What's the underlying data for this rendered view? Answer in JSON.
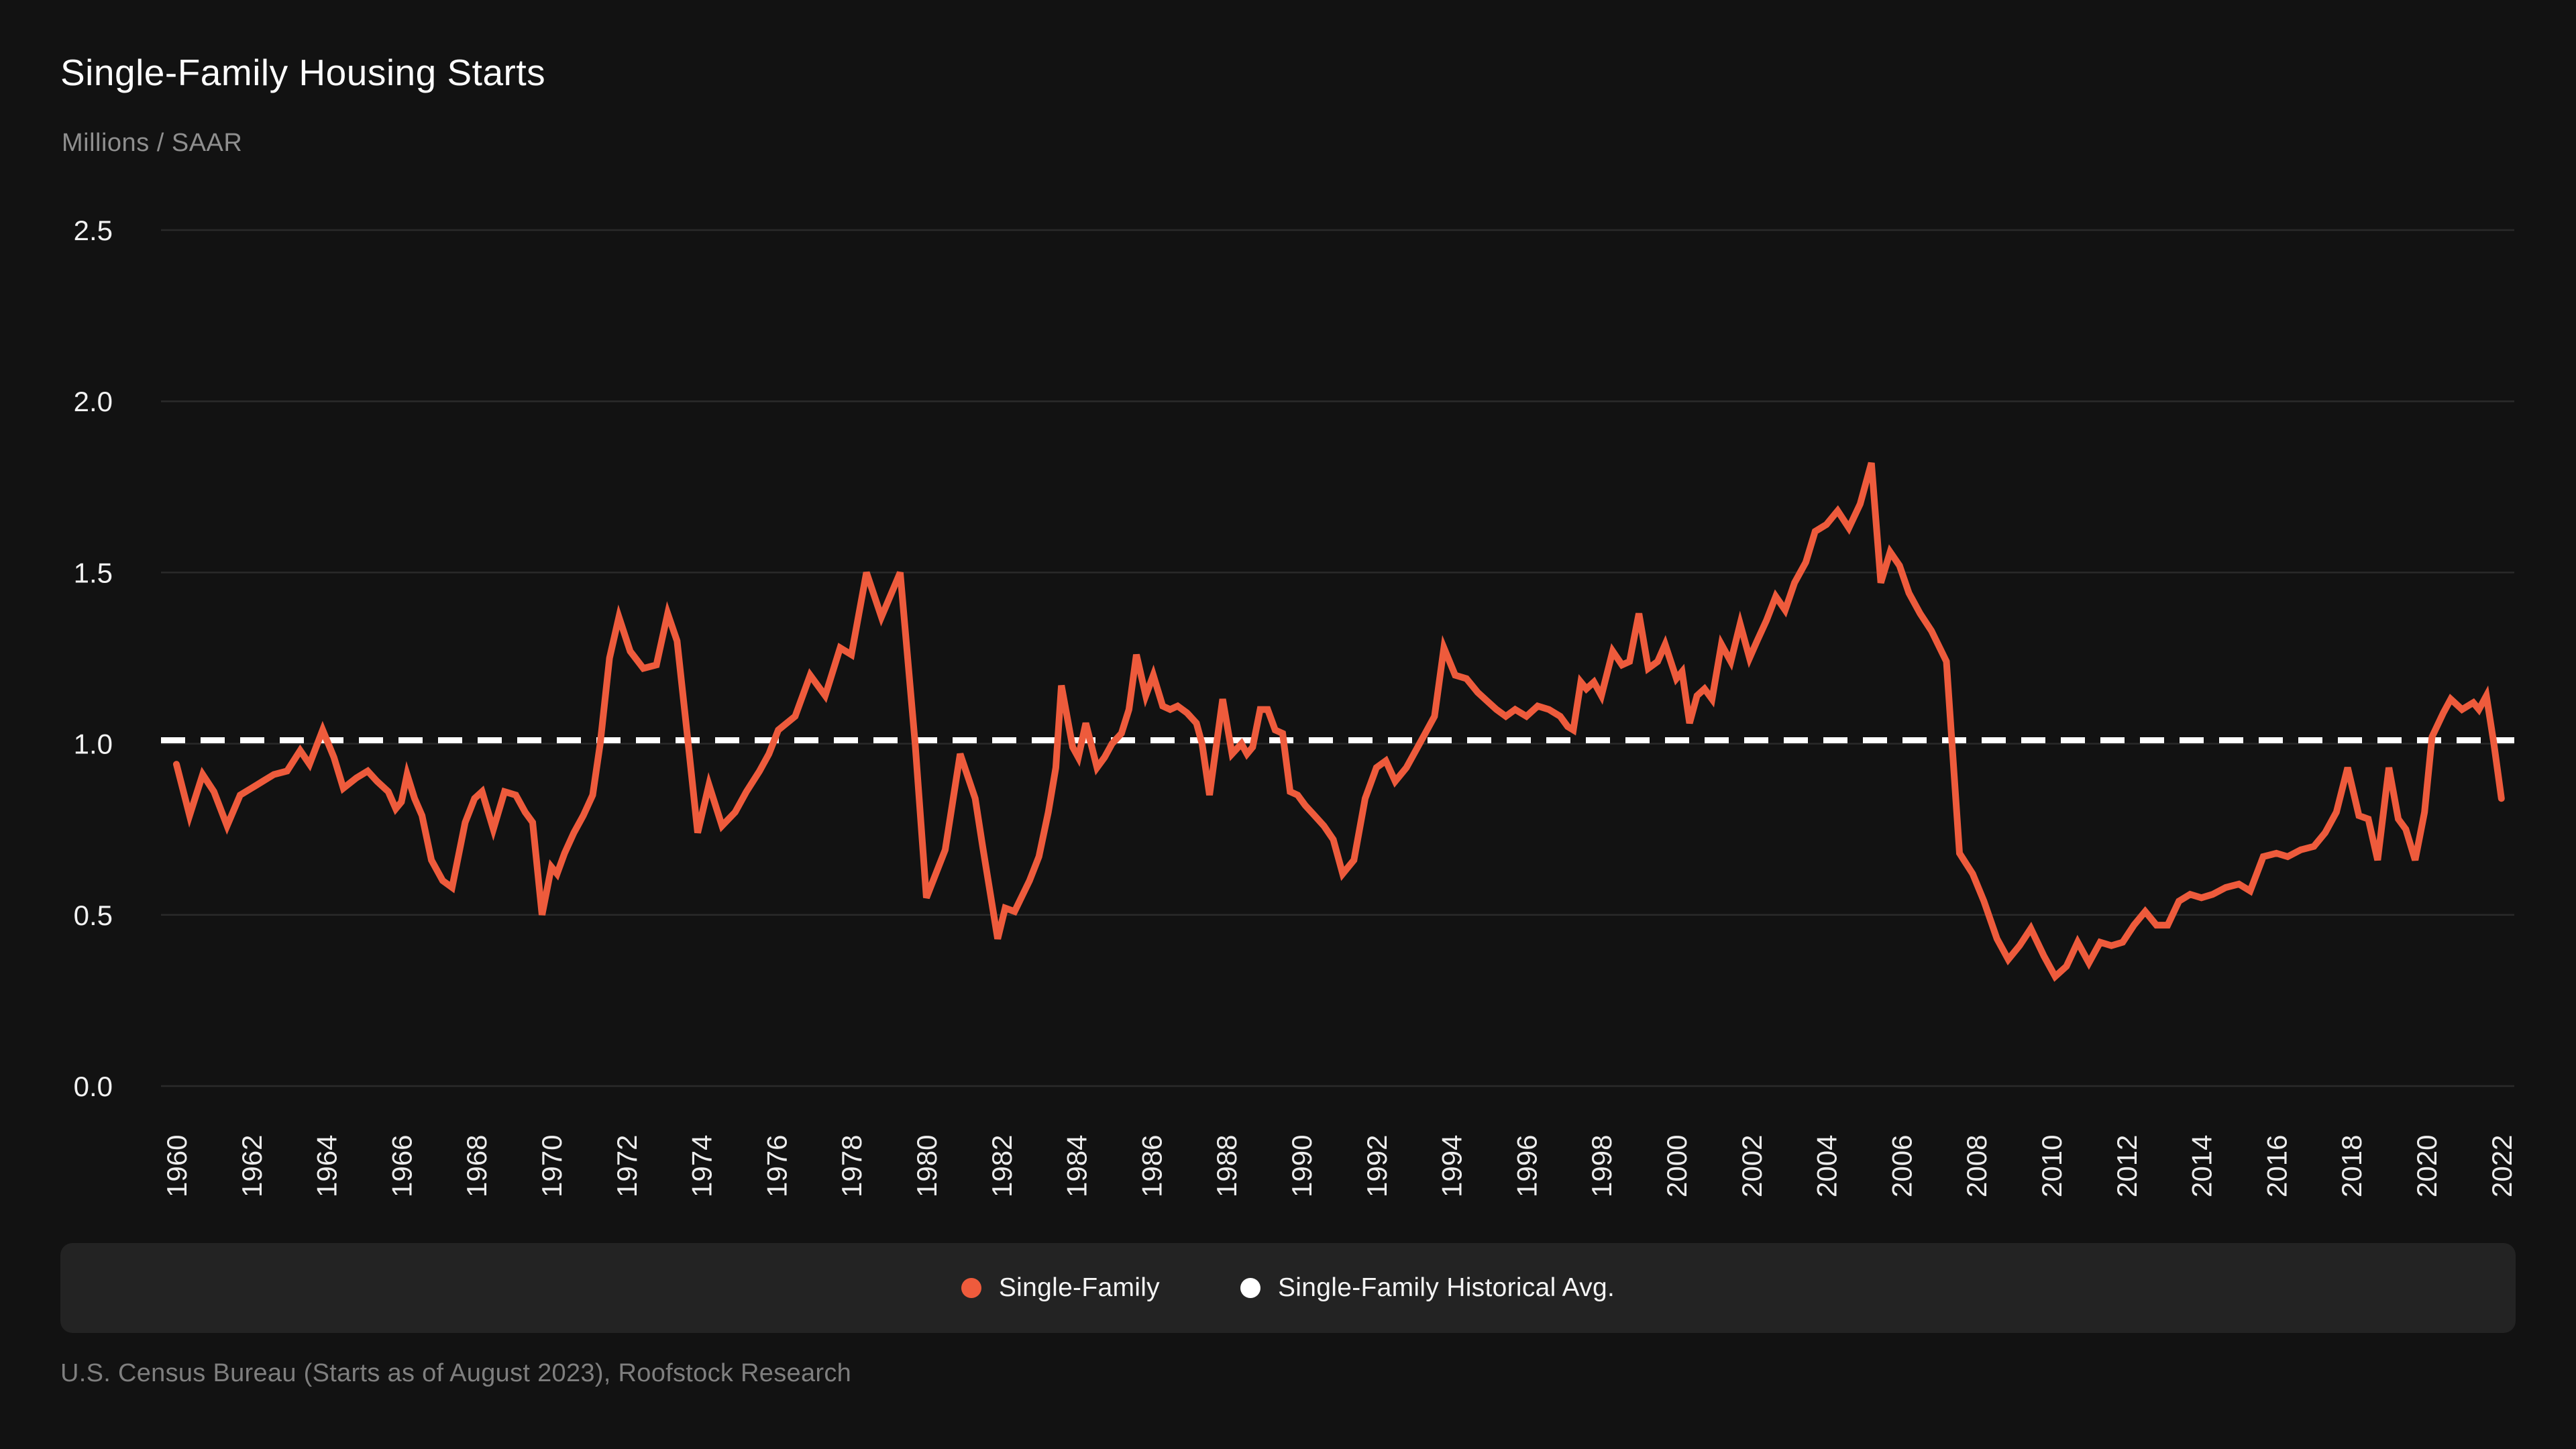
{
  "header": {
    "title": "Single-Family Housing Starts",
    "subtitle": "Millions / SAAR"
  },
  "source": {
    "text": "U.S. Census Bureau (Starts as of August 2023), Roofstock Research"
  },
  "colors": {
    "background": "#121212",
    "panel": "#232323",
    "grid": "#2a2a2a",
    "series_orange": "#EE5B3C",
    "avg_white": "#FFFFFF",
    "title_text": "#FFFFFF",
    "muted_text": "#8F8F8F",
    "axis_text": "#EDEDED"
  },
  "legend": [
    {
      "label": "Single-Family",
      "color": "#EE5B3C"
    },
    {
      "label": "Single-Family Historical Avg.",
      "color": "#FFFFFF"
    }
  ],
  "chart_data": {
    "type": "line",
    "title": "Single-Family Housing Starts",
    "ylabel": "Millions / SAAR",
    "xlabel": "",
    "ylim": [
      0,
      2.5
    ],
    "yticks": [
      0.0,
      0.5,
      1.0,
      1.5,
      2.0,
      2.5
    ],
    "xticks": [
      1960,
      1962,
      1964,
      1966,
      1968,
      1970,
      1972,
      1974,
      1976,
      1978,
      1980,
      1982,
      1984,
      1986,
      1988,
      1990,
      1992,
      1994,
      1996,
      1998,
      2000,
      2002,
      2004,
      2006,
      2008,
      2010,
      2012,
      2014,
      2016,
      2018,
      2020,
      2022
    ],
    "grid": "horizontal",
    "legend_position": "bottom",
    "avg_line": {
      "label": "Single-Family Historical Avg.",
      "value": 1.01,
      "style": "dashed",
      "color": "#FFFFFF"
    },
    "series": [
      {
        "name": "Single-Family",
        "color": "#EE5B3C",
        "points": [
          [
            1960.0,
            0.94
          ],
          [
            1960.35,
            0.79
          ],
          [
            1960.7,
            0.91
          ],
          [
            1961.0,
            0.86
          ],
          [
            1961.35,
            0.76
          ],
          [
            1961.7,
            0.85
          ],
          [
            1962.0,
            0.87
          ],
          [
            1962.3,
            0.89
          ],
          [
            1962.6,
            0.91
          ],
          [
            1962.95,
            0.92
          ],
          [
            1963.3,
            0.98
          ],
          [
            1963.55,
            0.94
          ],
          [
            1963.9,
            1.04
          ],
          [
            1964.2,
            0.96
          ],
          [
            1964.45,
            0.87
          ],
          [
            1964.8,
            0.9
          ],
          [
            1965.1,
            0.92
          ],
          [
            1965.35,
            0.89
          ],
          [
            1965.65,
            0.86
          ],
          [
            1965.85,
            0.81
          ],
          [
            1966.0,
            0.83
          ],
          [
            1966.15,
            0.91
          ],
          [
            1966.35,
            0.84
          ],
          [
            1966.55,
            0.79
          ],
          [
            1966.8,
            0.66
          ],
          [
            1967.1,
            0.6
          ],
          [
            1967.35,
            0.58
          ],
          [
            1967.7,
            0.77
          ],
          [
            1967.95,
            0.84
          ],
          [
            1968.15,
            0.86
          ],
          [
            1968.45,
            0.75
          ],
          [
            1968.75,
            0.86
          ],
          [
            1969.05,
            0.85
          ],
          [
            1969.3,
            0.8
          ],
          [
            1969.5,
            0.77
          ],
          [
            1969.75,
            0.5
          ],
          [
            1970.0,
            0.64
          ],
          [
            1970.15,
            0.62
          ],
          [
            1970.35,
            0.68
          ],
          [
            1970.6,
            0.74
          ],
          [
            1970.85,
            0.79
          ],
          [
            1971.1,
            0.85
          ],
          [
            1971.3,
            1.0
          ],
          [
            1971.55,
            1.25
          ],
          [
            1971.8,
            1.37
          ],
          [
            1972.1,
            1.27
          ],
          [
            1972.45,
            1.22
          ],
          [
            1972.8,
            1.23
          ],
          [
            1973.1,
            1.38
          ],
          [
            1973.35,
            1.3
          ],
          [
            1973.6,
            1.05
          ],
          [
            1973.9,
            0.74
          ],
          [
            1974.2,
            0.88
          ],
          [
            1974.55,
            0.76
          ],
          [
            1974.9,
            0.8
          ],
          [
            1975.2,
            0.86
          ],
          [
            1975.55,
            0.92
          ],
          [
            1975.8,
            0.97
          ],
          [
            1976.05,
            1.04
          ],
          [
            1976.5,
            1.08
          ],
          [
            1976.9,
            1.2
          ],
          [
            1977.3,
            1.14
          ],
          [
            1977.7,
            1.28
          ],
          [
            1978.0,
            1.26
          ],
          [
            1978.4,
            1.5
          ],
          [
            1978.8,
            1.37
          ],
          [
            1979.3,
            1.5
          ],
          [
            1979.7,
            1.0
          ],
          [
            1980.0,
            0.55
          ],
          [
            1980.5,
            0.69
          ],
          [
            1980.9,
            0.97
          ],
          [
            1981.3,
            0.84
          ],
          [
            1981.5,
            0.7
          ],
          [
            1981.9,
            0.43
          ],
          [
            1982.1,
            0.52
          ],
          [
            1982.35,
            0.51
          ],
          [
            1982.75,
            0.6
          ],
          [
            1983.0,
            0.67
          ],
          [
            1983.25,
            0.8
          ],
          [
            1983.45,
            0.93
          ],
          [
            1983.6,
            1.17
          ],
          [
            1983.9,
            0.99
          ],
          [
            1984.05,
            0.96
          ],
          [
            1984.25,
            1.06
          ],
          [
            1984.55,
            0.93
          ],
          [
            1984.75,
            0.96
          ],
          [
            1984.95,
            1.0
          ],
          [
            1985.2,
            1.03
          ],
          [
            1985.4,
            1.1
          ],
          [
            1985.6,
            1.26
          ],
          [
            1985.85,
            1.14
          ],
          [
            1986.05,
            1.2
          ],
          [
            1986.3,
            1.11
          ],
          [
            1986.5,
            1.1
          ],
          [
            1986.7,
            1.11
          ],
          [
            1986.95,
            1.09
          ],
          [
            1987.2,
            1.06
          ],
          [
            1987.35,
            1.0
          ],
          [
            1987.55,
            0.85
          ],
          [
            1987.9,
            1.13
          ],
          [
            1988.15,
            0.97
          ],
          [
            1988.4,
            1.0
          ],
          [
            1988.55,
            0.97
          ],
          [
            1988.7,
            0.99
          ],
          [
            1988.9,
            1.1
          ],
          [
            1989.1,
            1.1
          ],
          [
            1989.3,
            1.04
          ],
          [
            1989.5,
            1.03
          ],
          [
            1989.7,
            0.86
          ],
          [
            1989.9,
            0.85
          ],
          [
            1990.1,
            0.82
          ],
          [
            1990.35,
            0.79
          ],
          [
            1990.6,
            0.76
          ],
          [
            1990.85,
            0.72
          ],
          [
            1991.1,
            0.62
          ],
          [
            1991.4,
            0.66
          ],
          [
            1991.7,
            0.84
          ],
          [
            1992.0,
            0.93
          ],
          [
            1992.25,
            0.95
          ],
          [
            1992.5,
            0.89
          ],
          [
            1992.8,
            0.93
          ],
          [
            1993.05,
            0.98
          ],
          [
            1993.3,
            1.03
          ],
          [
            1993.55,
            1.08
          ],
          [
            1993.8,
            1.28
          ],
          [
            1994.1,
            1.2
          ],
          [
            1994.4,
            1.19
          ],
          [
            1994.7,
            1.15
          ],
          [
            1995.0,
            1.12
          ],
          [
            1995.2,
            1.1
          ],
          [
            1995.45,
            1.08
          ],
          [
            1995.7,
            1.1
          ],
          [
            1996.0,
            1.08
          ],
          [
            1996.3,
            1.11
          ],
          [
            1996.6,
            1.1
          ],
          [
            1996.9,
            1.08
          ],
          [
            1997.1,
            1.05
          ],
          [
            1997.25,
            1.04
          ],
          [
            1997.45,
            1.18
          ],
          [
            1997.6,
            1.16
          ],
          [
            1997.8,
            1.18
          ],
          [
            1998.0,
            1.14
          ],
          [
            1998.3,
            1.27
          ],
          [
            1998.55,
            1.23
          ],
          [
            1998.75,
            1.24
          ],
          [
            1999.0,
            1.38
          ],
          [
            1999.25,
            1.22
          ],
          [
            1999.5,
            1.24
          ],
          [
            1999.7,
            1.29
          ],
          [
            2000.0,
            1.19
          ],
          [
            2000.15,
            1.21
          ],
          [
            2000.35,
            1.06
          ],
          [
            2000.55,
            1.14
          ],
          [
            2000.75,
            1.16
          ],
          [
            2000.95,
            1.13
          ],
          [
            2001.2,
            1.29
          ],
          [
            2001.45,
            1.24
          ],
          [
            2001.7,
            1.35
          ],
          [
            2001.95,
            1.25
          ],
          [
            2002.15,
            1.3
          ],
          [
            2002.4,
            1.36
          ],
          [
            2002.65,
            1.43
          ],
          [
            2002.9,
            1.39
          ],
          [
            2003.15,
            1.47
          ],
          [
            2003.45,
            1.53
          ],
          [
            2003.7,
            1.62
          ],
          [
            2004.0,
            1.64
          ],
          [
            2004.3,
            1.68
          ],
          [
            2004.6,
            1.63
          ],
          [
            2004.9,
            1.7
          ],
          [
            2005.2,
            1.82
          ],
          [
            2005.45,
            1.47
          ],
          [
            2005.7,
            1.56
          ],
          [
            2005.95,
            1.52
          ],
          [
            2006.2,
            1.44
          ],
          [
            2006.5,
            1.38
          ],
          [
            2006.8,
            1.33
          ],
          [
            2007.2,
            1.24
          ],
          [
            2007.55,
            0.68
          ],
          [
            2007.9,
            0.62
          ],
          [
            2008.2,
            0.54
          ],
          [
            2008.55,
            0.43
          ],
          [
            2008.85,
            0.37
          ],
          [
            2009.15,
            0.41
          ],
          [
            2009.45,
            0.46
          ],
          [
            2009.8,
            0.38
          ],
          [
            2010.1,
            0.32
          ],
          [
            2010.4,
            0.35
          ],
          [
            2010.7,
            0.42
          ],
          [
            2011.0,
            0.36
          ],
          [
            2011.3,
            0.42
          ],
          [
            2011.6,
            0.41
          ],
          [
            2011.9,
            0.42
          ],
          [
            2012.2,
            0.47
          ],
          [
            2012.5,
            0.51
          ],
          [
            2012.8,
            0.47
          ],
          [
            2013.1,
            0.47
          ],
          [
            2013.4,
            0.54
          ],
          [
            2013.7,
            0.56
          ],
          [
            2014.0,
            0.55
          ],
          [
            2014.3,
            0.56
          ],
          [
            2014.65,
            0.58
          ],
          [
            2015.0,
            0.59
          ],
          [
            2015.3,
            0.57
          ],
          [
            2015.65,
            0.67
          ],
          [
            2016.0,
            0.68
          ],
          [
            2016.3,
            0.67
          ],
          [
            2016.65,
            0.69
          ],
          [
            2017.0,
            0.7
          ],
          [
            2017.3,
            0.74
          ],
          [
            2017.6,
            0.8
          ],
          [
            2017.9,
            0.93
          ],
          [
            2018.2,
            0.79
          ],
          [
            2018.45,
            0.78
          ],
          [
            2018.7,
            0.66
          ],
          [
            2019.0,
            0.93
          ],
          [
            2019.25,
            0.78
          ],
          [
            2019.45,
            0.75
          ],
          [
            2019.7,
            0.66
          ],
          [
            2019.95,
            0.8
          ],
          [
            2020.15,
            1.02
          ],
          [
            2020.45,
            1.09
          ],
          [
            2020.65,
            1.13
          ],
          [
            2020.95,
            1.1
          ],
          [
            2021.25,
            1.12
          ],
          [
            2021.4,
            1.1
          ],
          [
            2021.6,
            1.14
          ],
          [
            2021.8,
            1.0
          ],
          [
            2022.0,
            0.84
          ]
        ]
      }
    ]
  }
}
